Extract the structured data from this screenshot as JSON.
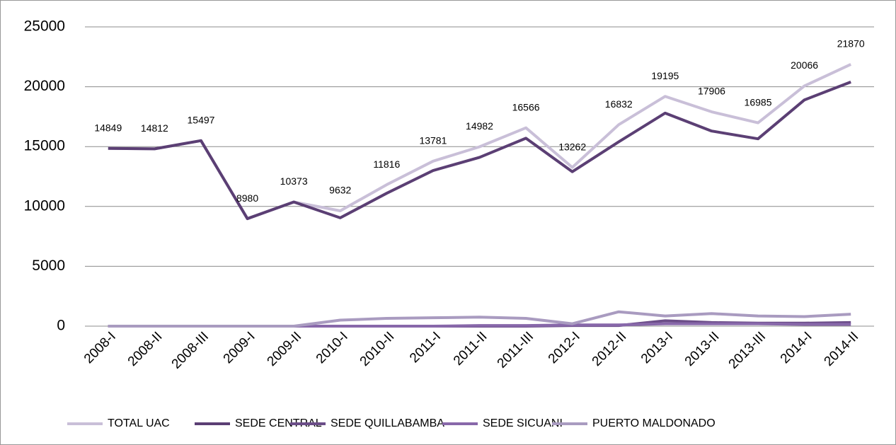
{
  "chart_data": {
    "type": "line",
    "categories": [
      "2008-I",
      "2008-II",
      "2008-III",
      "2009-I",
      "2009-II",
      "2010-I",
      "2010-II",
      "2011-I",
      "2011-II",
      "2011-III",
      "2012-I",
      "2012-II",
      "2013-I",
      "2013-II",
      "2013-III",
      "2014-I",
      "2014-II"
    ],
    "series": [
      {
        "name": "TOTAL UAC",
        "color": "#c9bfd8",
        "values": [
          14849,
          14812,
          15497,
          8980,
          10373,
          9632,
          11816,
          13781,
          14982,
          16566,
          13262,
          16832,
          19195,
          17906,
          16985,
          20066,
          21870
        ],
        "data_labels": true
      },
      {
        "name": "SEDE CENTRAL",
        "color": "#5b3f74",
        "values": [
          14849,
          14812,
          15497,
          8980,
          10373,
          9050,
          11100,
          13000,
          14100,
          15700,
          12900,
          15400,
          17800,
          16300,
          15650,
          18900,
          20400
        ]
      },
      {
        "name": "SEDE QUILLABAMBA",
        "color": "#6b4d88",
        "values": [
          0,
          0,
          0,
          0,
          0,
          0,
          0,
          0,
          0,
          0,
          50,
          50,
          450,
          300,
          250,
          250,
          300
        ]
      },
      {
        "name": "SEDE SICUANI",
        "color": "#8868aa",
        "values": [
          0,
          0,
          0,
          0,
          0,
          0,
          0,
          0,
          50,
          50,
          100,
          100,
          200,
          200,
          200,
          150,
          150
        ]
      },
      {
        "name": "PUERTO MALDONADO",
        "color": "#a99bc0",
        "values": [
          0,
          0,
          0,
          0,
          0,
          500,
          650,
          700,
          750,
          650,
          200,
          1200,
          850,
          1050,
          850,
          800,
          1000
        ]
      }
    ],
    "ylim": [
      0,
      25000
    ],
    "yticks": [
      0,
      5000,
      10000,
      15000,
      20000,
      25000
    ],
    "grid": true,
    "legend": "bottom"
  }
}
